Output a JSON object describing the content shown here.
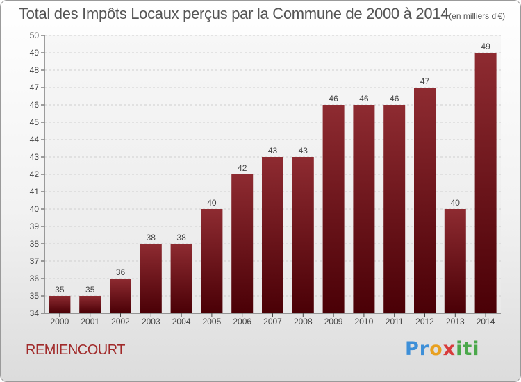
{
  "chart_data": {
    "type": "bar",
    "title": "Total des Impôts Locaux perçus par la Commune de 2000 à 2014",
    "unit_label": "(en milliers d'€)",
    "categories": [
      "2000",
      "2001",
      "2002",
      "2003",
      "2004",
      "2005",
      "2006",
      "2007",
      "2008",
      "2009",
      "2010",
      "2011",
      "2012",
      "2013",
      "2014"
    ],
    "values": [
      35,
      35,
      36,
      38,
      38,
      40,
      42,
      43,
      43,
      46,
      46,
      46,
      47,
      40,
      49
    ],
    "ylim": [
      34,
      50
    ],
    "yticks": [
      34,
      35,
      36,
      37,
      38,
      39,
      40,
      41,
      42,
      43,
      44,
      45,
      46,
      47,
      48,
      49,
      50
    ],
    "grid": true,
    "bar_color": "#7a1a1f"
  },
  "commune": "REMIENCOURT",
  "logo": {
    "text": "Proxiti"
  }
}
